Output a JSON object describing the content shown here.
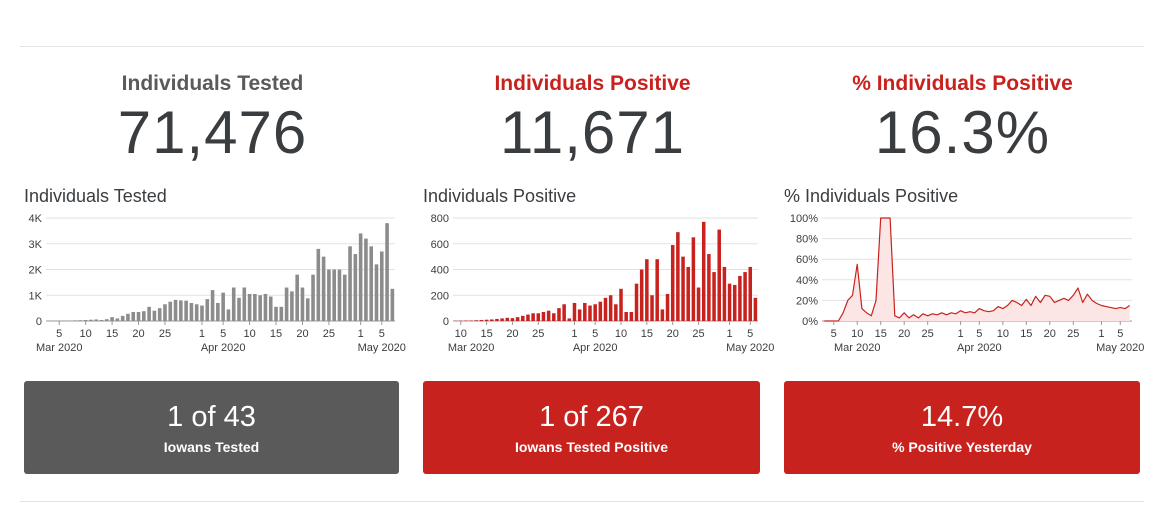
{
  "colors": {
    "gray": "#5a5a5a",
    "bar_gray": "#8c8c8c",
    "red": "#c8221e",
    "text": "#3a3d40"
  },
  "panels": [
    {
      "kpi_title": "Individuals Tested",
      "kpi_value": "71,476",
      "chart_title": "Individuals Tested",
      "card_value": "1 of 43",
      "card_label": "Iowans Tested"
    },
    {
      "kpi_title": "Individuals Positive",
      "kpi_value": "11,671",
      "chart_title": "Individuals Positive",
      "card_value": "1 of 267",
      "card_label": "Iowans Tested Positive"
    },
    {
      "kpi_title": "% Individuals Positive",
      "kpi_value": "16.3%",
      "chart_title": "% Individuals Positive",
      "card_value": "14.7%",
      "card_label": "% Positive Yesterday"
    }
  ],
  "chart_data": [
    {
      "type": "bar",
      "title": "Individuals Tested",
      "x_start": "2020-03-03",
      "ylim": [
        0,
        4000
      ],
      "yticks": [
        0,
        1000,
        2000,
        3000,
        4000
      ],
      "ytick_labels": [
        "0",
        "1K",
        "2K",
        "3K",
        "4K"
      ],
      "xtick_labels": [
        "5",
        "10",
        "15",
        "20",
        "25",
        "1",
        "5",
        "10",
        "15",
        "20",
        "25",
        "1",
        "5"
      ],
      "xtick_dates": [
        "2020-03-05",
        "2020-03-10",
        "2020-03-15",
        "2020-03-20",
        "2020-03-25",
        "2020-04-01",
        "2020-04-05",
        "2020-04-10",
        "2020-04-15",
        "2020-04-20",
        "2020-04-25",
        "2020-05-01",
        "2020-05-05"
      ],
      "month_labels": [
        {
          "label": "Mar 2020",
          "date": "2020-03-05"
        },
        {
          "label": "Apr 2020",
          "date": "2020-04-05"
        },
        {
          "label": "May 2020",
          "date": "2020-05-05"
        }
      ],
      "grid": true,
      "values": [
        10,
        15,
        20,
        15,
        20,
        25,
        30,
        40,
        50,
        60,
        40,
        70,
        150,
        100,
        200,
        280,
        350,
        350,
        380,
        550,
        400,
        500,
        650,
        750,
        820,
        800,
        790,
        700,
        650,
        600,
        850,
        1200,
        700,
        1100,
        450,
        1300,
        900,
        1300,
        1050,
        1050,
        1000,
        1050,
        950,
        550,
        550,
        1300,
        1150,
        1800,
        1300,
        880,
        1800,
        2800,
        2500,
        2000,
        2000,
        2000,
        1800,
        2900,
        2600,
        3400,
        3200,
        2900,
        2200,
        2700,
        3800,
        1250
      ]
    },
    {
      "type": "bar",
      "title": "Individuals Positive",
      "x_start": "2020-03-09",
      "ylim": [
        0,
        800
      ],
      "yticks": [
        0,
        200,
        400,
        600,
        800
      ],
      "ytick_labels": [
        "0",
        "200",
        "400",
        "600",
        "800"
      ],
      "xtick_labels": [
        "10",
        "15",
        "20",
        "25",
        "1",
        "5",
        "10",
        "15",
        "20",
        "25",
        "1",
        "5"
      ],
      "xtick_dates": [
        "2020-03-10",
        "2020-03-15",
        "2020-03-20",
        "2020-03-25",
        "2020-04-01",
        "2020-04-05",
        "2020-04-10",
        "2020-04-15",
        "2020-04-20",
        "2020-04-25",
        "2020-05-01",
        "2020-05-05"
      ],
      "month_labels": [
        {
          "label": "Mar 2020",
          "date": "2020-03-12"
        },
        {
          "label": "Apr 2020",
          "date": "2020-04-05"
        },
        {
          "label": "May 2020",
          "date": "2020-05-05"
        }
      ],
      "grid": true,
      "values": [
        2,
        3,
        4,
        4,
        6,
        8,
        10,
        12,
        16,
        20,
        25,
        22,
        30,
        40,
        50,
        60,
        60,
        70,
        80,
        60,
        100,
        130,
        20,
        140,
        90,
        140,
        120,
        130,
        150,
        180,
        200,
        130,
        250,
        70,
        70,
        290,
        400,
        480,
        200,
        480,
        90,
        210,
        590,
        690,
        500,
        420,
        650,
        260,
        770,
        520,
        380,
        710,
        420,
        290,
        280,
        350,
        380,
        420,
        180
      ]
    },
    {
      "type": "area",
      "title": "% Individuals Positive",
      "x_start": "2020-03-03",
      "ylim": [
        0,
        100
      ],
      "yticks": [
        0,
        20,
        40,
        60,
        80,
        100
      ],
      "ytick_labels": [
        "0%",
        "20%",
        "40%",
        "60%",
        "80%",
        "100%"
      ],
      "xtick_labels": [
        "5",
        "10",
        "15",
        "20",
        "25",
        "1",
        "5",
        "10",
        "15",
        "20",
        "25",
        "1",
        "5"
      ],
      "xtick_dates": [
        "2020-03-05",
        "2020-03-10",
        "2020-03-15",
        "2020-03-20",
        "2020-03-25",
        "2020-04-01",
        "2020-04-05",
        "2020-04-10",
        "2020-04-15",
        "2020-04-20",
        "2020-04-25",
        "2020-05-01",
        "2020-05-05"
      ],
      "month_labels": [
        {
          "label": "Mar 2020",
          "date": "2020-03-10"
        },
        {
          "label": "Apr 2020",
          "date": "2020-04-05"
        },
        {
          "label": "May 2020",
          "date": "2020-05-05"
        }
      ],
      "grid": true,
      "values": [
        0,
        0,
        0,
        0,
        8,
        20,
        25,
        55,
        12,
        8,
        5,
        20,
        100,
        100,
        100,
        5,
        3,
        8,
        3,
        6,
        3,
        7,
        5,
        7,
        6,
        8,
        6,
        8,
        7,
        10,
        8,
        9,
        8,
        12,
        10,
        9,
        10,
        14,
        12,
        15,
        20,
        18,
        15,
        21,
        15,
        24,
        18,
        25,
        24,
        18,
        20,
        22,
        20,
        25,
        32,
        18,
        26,
        20,
        17,
        15,
        14,
        13,
        12,
        13,
        12,
        15
      ]
    }
  ]
}
